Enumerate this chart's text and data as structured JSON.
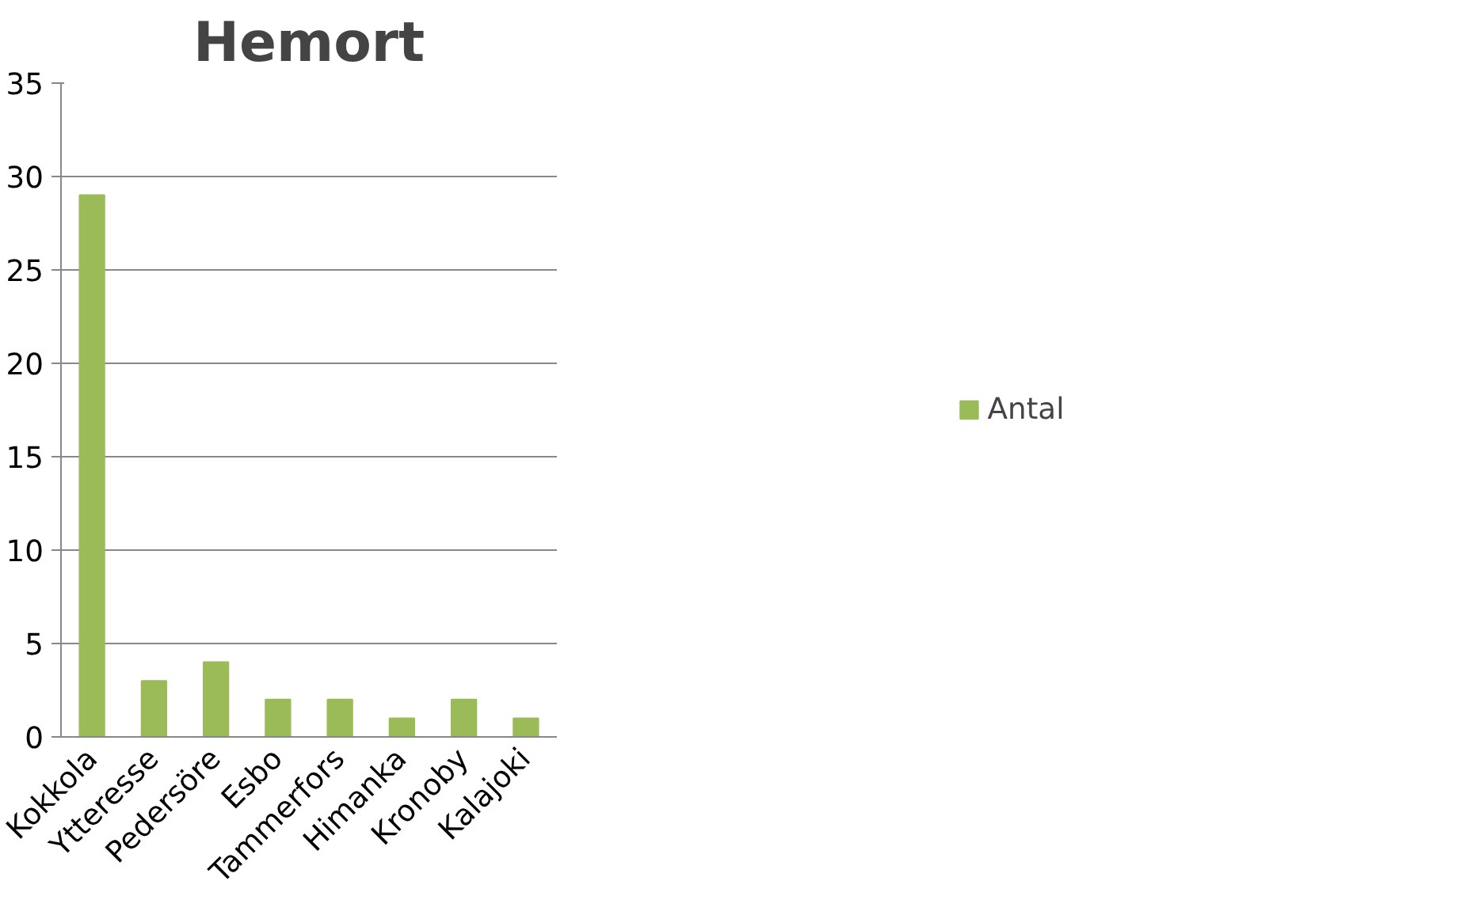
{
  "chart_data": {
    "type": "bar",
    "title": "Hemort",
    "categories": [
      "Kokkola",
      "Ytteresse",
      "Pedersöre",
      "Esbo",
      "Tammerfors",
      "Himanka",
      "Kronoby",
      "Kalajoki"
    ],
    "series": [
      {
        "name": "Antal",
        "color": "#9bbb59",
        "values": [
          29,
          3,
          4,
          2,
          2,
          1,
          2,
          1
        ]
      }
    ],
    "ylim": [
      0,
      35
    ],
    "yticks": [
      0,
      5,
      10,
      15,
      20,
      25,
      30,
      35
    ],
    "grid": "y",
    "legend": "right"
  }
}
